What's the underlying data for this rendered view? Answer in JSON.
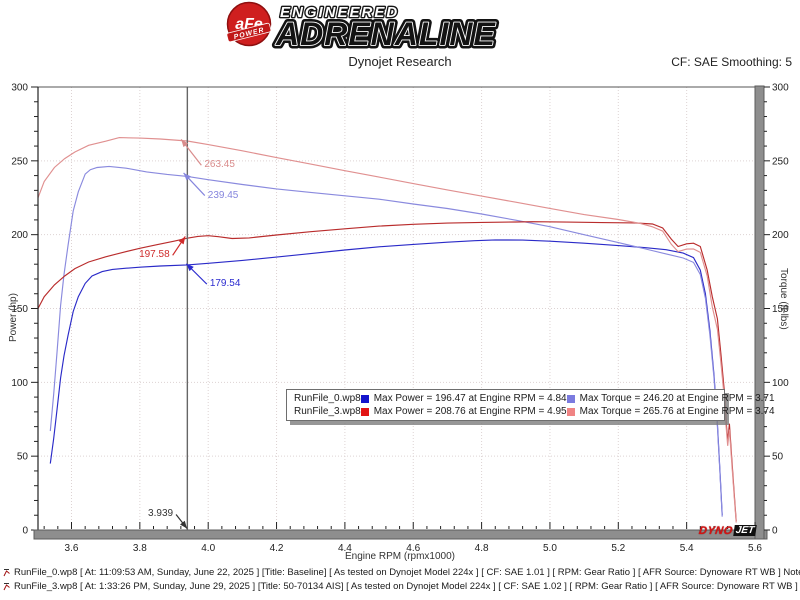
{
  "header": {
    "logo_afe": "aFe",
    "logo_power": "POWER",
    "brand_top": "ENGINEERED",
    "brand_main": "ADRENALINE",
    "title": "Dynojet Research",
    "cf_label": "CF: SAE Smoothing: 5"
  },
  "chart_data": {
    "type": "line",
    "xlabel": "Engine RPM (rpmx1000)",
    "ylabel_left": "Power (hp)",
    "ylabel_right": "Torque (ft-lbs)",
    "x_range": [
      3.502,
      5.6
    ],
    "y_range": [
      0,
      300
    ],
    "x_ticks": [
      3.6,
      3.8,
      4.0,
      4.2,
      4.4,
      4.6,
      4.8,
      5.0,
      5.2,
      5.4,
      5.6
    ],
    "y_ticks": [
      0,
      50,
      100,
      150,
      200,
      250,
      300
    ],
    "grid": true,
    "cursor_rpm": 3.939,
    "series": [
      {
        "id": "runfile0-power",
        "name": "RunFile_0.wp8 Power",
        "axis": "left",
        "color": "#2a2ac8",
        "points": [
          [
            3.538,
            45
          ],
          [
            3.548,
            62
          ],
          [
            3.558,
            82
          ],
          [
            3.568,
            103
          ],
          [
            3.578,
            118
          ],
          [
            3.59,
            132
          ],
          [
            3.605,
            148
          ],
          [
            3.62,
            158
          ],
          [
            3.64,
            167
          ],
          [
            3.66,
            172
          ],
          [
            3.69,
            175
          ],
          [
            3.72,
            176.5
          ],
          [
            3.76,
            177.3
          ],
          [
            3.8,
            178
          ],
          [
            3.86,
            178.8
          ],
          [
            3.939,
            179.54
          ],
          [
            4.0,
            180.6
          ],
          [
            4.1,
            182.6
          ],
          [
            4.2,
            184.8
          ],
          [
            4.3,
            187.2
          ],
          [
            4.4,
            189.6
          ],
          [
            4.5,
            191.8
          ],
          [
            4.6,
            193.4
          ],
          [
            4.7,
            194.9
          ],
          [
            4.78,
            195.9
          ],
          [
            4.84,
            196.47
          ],
          [
            4.92,
            196.3
          ],
          [
            5.0,
            195.6
          ],
          [
            5.1,
            194.2
          ],
          [
            5.2,
            192.6
          ],
          [
            5.28,
            191.2
          ],
          [
            5.34,
            189.8
          ],
          [
            5.39,
            187.5
          ],
          [
            5.42,
            184.5
          ],
          [
            5.44,
            176
          ],
          [
            5.455,
            160
          ],
          [
            5.468,
            135
          ],
          [
            5.48,
            105
          ],
          [
            5.49,
            72
          ],
          [
            5.498,
            38
          ],
          [
            5.504,
            10
          ]
        ]
      },
      {
        "id": "runfile0-torque",
        "name": "RunFile_0.wp8 Torque",
        "axis": "right",
        "color": "#8a8ade",
        "points": [
          [
            3.538,
            67
          ],
          [
            3.548,
            92
          ],
          [
            3.558,
            121
          ],
          [
            3.568,
            152
          ],
          [
            3.578,
            173
          ],
          [
            3.59,
            193
          ],
          [
            3.605,
            216
          ],
          [
            3.62,
            229
          ],
          [
            3.64,
            241
          ],
          [
            3.655,
            244
          ],
          [
            3.675,
            245.5
          ],
          [
            3.71,
            246.2
          ],
          [
            3.76,
            245
          ],
          [
            3.82,
            242.5
          ],
          [
            3.88,
            240.8
          ],
          [
            3.939,
            239.45
          ],
          [
            4.0,
            237.2
          ],
          [
            4.1,
            234
          ],
          [
            4.2,
            231
          ],
          [
            4.3,
            228.6
          ],
          [
            4.4,
            226.3
          ],
          [
            4.5,
            224
          ],
          [
            4.6,
            220.8
          ],
          [
            4.7,
            217.7
          ],
          [
            4.8,
            214
          ],
          [
            4.9,
            209.8
          ],
          [
            5.0,
            205.4
          ],
          [
            5.1,
            200
          ],
          [
            5.2,
            194.6
          ],
          [
            5.28,
            190.3
          ],
          [
            5.34,
            187
          ],
          [
            5.39,
            184.2
          ],
          [
            5.42,
            181.2
          ],
          [
            5.44,
            173
          ],
          [
            5.455,
            157
          ],
          [
            5.468,
            132
          ],
          [
            5.48,
            103
          ],
          [
            5.49,
            70
          ],
          [
            5.498,
            37
          ],
          [
            5.504,
            9
          ]
        ]
      },
      {
        "id": "runfile3-power",
        "name": "RunFile_3.wp8 Power",
        "axis": "left",
        "color": "#b92c2c",
        "points": [
          [
            3.502,
            150
          ],
          [
            3.52,
            158
          ],
          [
            3.55,
            166
          ],
          [
            3.58,
            172
          ],
          [
            3.61,
            177
          ],
          [
            3.65,
            181.5
          ],
          [
            3.7,
            185
          ],
          [
            3.75,
            188
          ],
          [
            3.8,
            190.8
          ],
          [
            3.85,
            193.2
          ],
          [
            3.9,
            195.6
          ],
          [
            3.939,
            197.58
          ],
          [
            3.97,
            198.8
          ],
          [
            4.0,
            199.3
          ],
          [
            4.03,
            198.6
          ],
          [
            4.07,
            197.4
          ],
          [
            4.12,
            197.8
          ],
          [
            4.2,
            199.8
          ],
          [
            4.3,
            202
          ],
          [
            4.4,
            204
          ],
          [
            4.5,
            205.8
          ],
          [
            4.6,
            207
          ],
          [
            4.7,
            207.8
          ],
          [
            4.8,
            208.3
          ],
          [
            4.9,
            208.6
          ],
          [
            4.95,
            208.76
          ],
          [
            5.05,
            208.5
          ],
          [
            5.15,
            208.2
          ],
          [
            5.25,
            208
          ],
          [
            5.3,
            207.2
          ],
          [
            5.33,
            204.5
          ],
          [
            5.355,
            197
          ],
          [
            5.375,
            192
          ],
          [
            5.4,
            193.8
          ],
          [
            5.42,
            194.2
          ],
          [
            5.44,
            192
          ],
          [
            5.46,
            176
          ],
          [
            5.475,
            158
          ],
          [
            5.49,
            143
          ],
          [
            5.5,
            120
          ],
          [
            5.51,
            95
          ],
          [
            5.515,
            75
          ],
          [
            5.52,
            60
          ],
          [
            5.525,
            72
          ],
          [
            5.532,
            48
          ],
          [
            5.54,
            22
          ],
          [
            5.545,
            6
          ]
        ]
      },
      {
        "id": "runfile3-torque",
        "name": "RunFile_3.wp8 Torque",
        "axis": "right",
        "color": "#e09090",
        "points": [
          [
            3.502,
            225
          ],
          [
            3.52,
            236
          ],
          [
            3.55,
            245.5
          ],
          [
            3.58,
            251.5
          ],
          [
            3.61,
            256
          ],
          [
            3.65,
            260.5
          ],
          [
            3.7,
            263.3
          ],
          [
            3.74,
            265.76
          ],
          [
            3.8,
            265.4
          ],
          [
            3.86,
            264.8
          ],
          [
            3.939,
            263.45
          ],
          [
            4.0,
            261
          ],
          [
            4.1,
            256.8
          ],
          [
            4.2,
            252.2
          ],
          [
            4.3,
            247.8
          ],
          [
            4.4,
            243.3
          ],
          [
            4.5,
            239
          ],
          [
            4.6,
            234.6
          ],
          [
            4.7,
            230.3
          ],
          [
            4.8,
            226.1
          ],
          [
            4.9,
            222
          ],
          [
            5.0,
            217.8
          ],
          [
            5.1,
            213.6
          ],
          [
            5.2,
            210.3
          ],
          [
            5.26,
            207.8
          ],
          [
            5.3,
            205.3
          ],
          [
            5.33,
            202.4
          ],
          [
            5.355,
            193.5
          ],
          [
            5.375,
            188.5
          ],
          [
            5.4,
            190.2
          ],
          [
            5.42,
            190.3
          ],
          [
            5.44,
            188
          ],
          [
            5.46,
            172
          ],
          [
            5.475,
            151
          ],
          [
            5.49,
            136
          ],
          [
            5.5,
            114
          ],
          [
            5.51,
            90
          ],
          [
            5.515,
            71
          ],
          [
            5.52,
            57
          ],
          [
            5.525,
            68
          ],
          [
            5.532,
            45
          ],
          [
            5.54,
            20
          ],
          [
            5.545,
            5
          ]
        ]
      }
    ],
    "annotations": [
      {
        "text": "263.45",
        "color": "#d98c8c",
        "tip_rpm": 3.921,
        "tip_val": 264.5,
        "tail_rpm": 3.98,
        "tail_val": 247
      },
      {
        "text": "239.45",
        "color": "#8585dd",
        "tip_rpm": 3.928,
        "tip_val": 241.8,
        "tail_rpm": 3.99,
        "tail_val": 226.5
      },
      {
        "text": "197.58",
        "color": "#cf2b2b",
        "tip_rpm": 3.933,
        "tip_val": 198.8,
        "tail_rpm": 3.896,
        "tail_val": 186,
        "align": "right"
      },
      {
        "text": "179.54",
        "color": "#2b2bcf",
        "tip_rpm": 3.936,
        "tip_val": 180.3,
        "tail_rpm": 3.996,
        "tail_val": 166.5
      },
      {
        "text": "3.939",
        "color": "#333333",
        "tip_rpm": 3.938,
        "tip_val": 1,
        "tail_rpm": 3.906,
        "tail_val": 10.5,
        "align": "right"
      }
    ]
  },
  "legend": {
    "rows": [
      {
        "name": "RunFile_0.wp8",
        "power_color": "#1414cc",
        "power_text": "Max Power = 196.47 at Engine RPM = 4.84",
        "torque_color": "#7b7bdf",
        "torque_text": "Max Torque = 246.20 at Engine RPM = 3.71"
      },
      {
        "name": "RunFile_3.wp8",
        "power_color": "#e21414",
        "power_text": "Max Power = 208.76 at Engine RPM = 4.95",
        "torque_color": "#f08484",
        "torque_text": "Max Torque = 265.76 at Engine RPM = 3.74"
      }
    ]
  },
  "dynojet": {
    "part1": "DYNO",
    "part2": "JET"
  },
  "footer": {
    "lines": [
      "RunFile_0.wp8 [ At: 11:09:53 AM, Sunday, June 22, 2025 ] [Title: Baseline]  [ As tested on Dynojet Model 224x ] [ CF: SAE 1.01 ] [ RPM: Gear Ratio ] [ AFR Source: Dynoware RT WB ] Notes:",
      "RunFile_3.wp8 [ At: 1:33:26 PM, Sunday, June 29, 2025 ] [Title: 50-70134 AIS]  [ As tested on Dynojet Model 224x ] [ CF: SAE 1.02 ] [ RPM: Gear Ratio ] [ AFR Source: Dynoware RT WB ] Notes:"
    ]
  }
}
